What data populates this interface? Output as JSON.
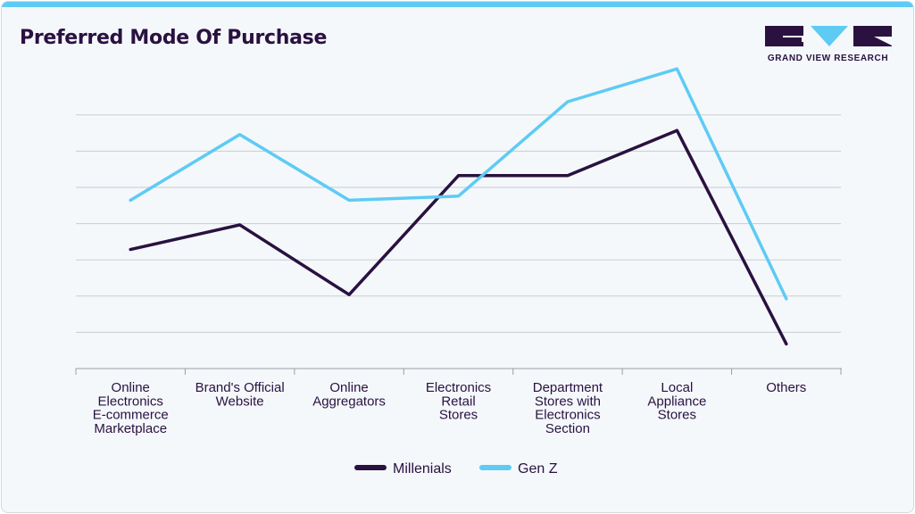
{
  "header": {
    "title": "Preferred Mode Of Purchase",
    "logo_text": "GRAND VIEW RESEARCH"
  },
  "colors": {
    "accent": "#5ecbf4",
    "dark": "#2a1140",
    "grid": "#c9cdd2"
  },
  "chart_data": {
    "type": "line",
    "title": "Preferred Mode Of Purchase",
    "xlabel": "",
    "ylabel": "",
    "ylim": [
      0,
      70
    ],
    "grid": true,
    "legend": "bottom-center",
    "categories": [
      [
        "Online",
        "Electronics",
        "E-commerce",
        "Marketplace"
      ],
      [
        "Brand's Official",
        "Website"
      ],
      [
        "Online",
        "Aggregators"
      ],
      [
        "Electronics",
        "Retail",
        "Stores"
      ],
      [
        "Department",
        "Stores with",
        "Electronics",
        "Section"
      ],
      [
        "Local",
        "Appliance",
        "Stores"
      ],
      [
        "Others"
      ]
    ],
    "series": [
      {
        "name": "Millenials",
        "color": "#2a1140",
        "values": [
          29,
          35,
          18,
          47,
          47,
          58,
          6
        ]
      },
      {
        "name": "Gen Z",
        "color": "#5ecbf4",
        "values": [
          41,
          57,
          41,
          42,
          65,
          73,
          17
        ]
      }
    ]
  }
}
